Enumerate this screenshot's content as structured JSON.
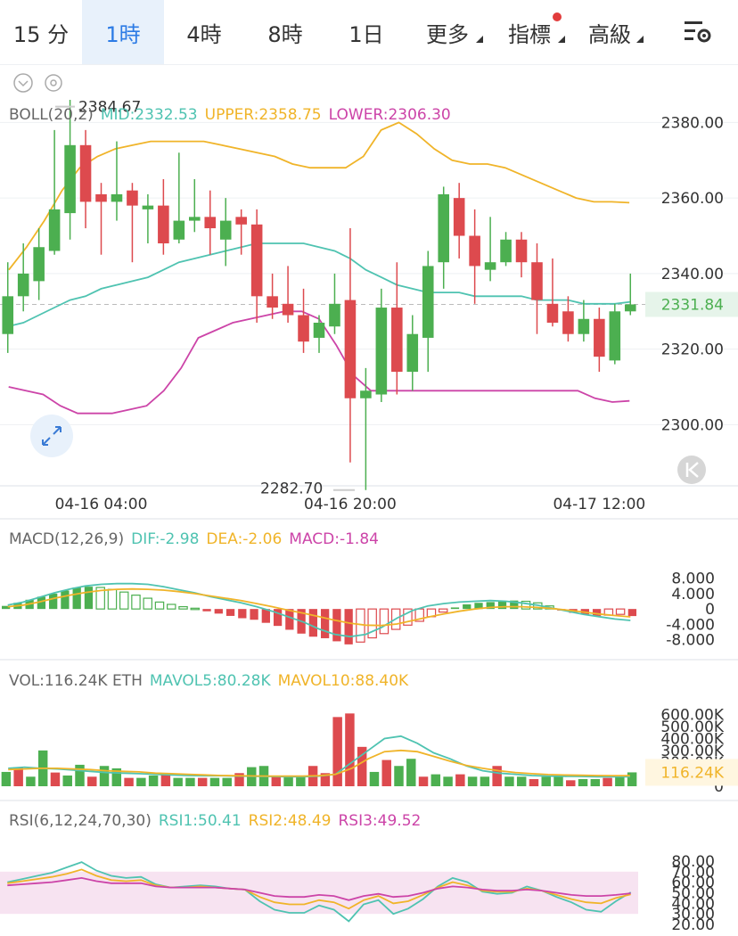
{
  "tabs": [
    {
      "label": "15 分",
      "active": false
    },
    {
      "label": "1時",
      "active": true
    },
    {
      "label": "4時",
      "active": false
    },
    {
      "label": "8時",
      "active": false
    },
    {
      "label": "1日",
      "active": false
    },
    {
      "label": "更多",
      "active": false,
      "dropdown": true
    },
    {
      "label": "指標",
      "active": false,
      "dropdown": true,
      "dot": true
    },
    {
      "label": "高級",
      "active": false,
      "dropdown": true
    }
  ],
  "colors": {
    "up": "#4caf50",
    "down": "#dd4a4e",
    "mid": "#4fc3b1",
    "upper": "#f0b429",
    "lower": "#cc44a8",
    "macd": "#cc44a8",
    "rsiBand": "#f7e3f1",
    "text": "#555555",
    "axis": "#333333",
    "grid": "#eef0f3",
    "active": "#2c7be5"
  },
  "icons": {
    "settings": "chart-settings-icon",
    "collapse": "chevron-down-circle-icon",
    "gear": "gear-icon",
    "expand": "expand-arrows-icon",
    "back": "skip-back-icon"
  },
  "chart_data": [
    {
      "type": "candlestick",
      "indicator": {
        "name": "BOLL(20,2)",
        "mid": "MID:2332.53",
        "upper": "UPPER:2358.75",
        "lower": "LOWER:2306.30"
      },
      "ylim": [
        2285,
        2390
      ],
      "yticks": [
        "2380.00",
        "2360.00",
        "2340.00",
        "2320.00",
        "2300.00"
      ],
      "ytick_values": [
        2380,
        2360,
        2340,
        2320,
        2300
      ],
      "last_price": "2331.84",
      "last_price_value": 2331.84,
      "high_label": "2384.67",
      "high_value": 2384.67,
      "low_label": "2282.70",
      "low_value": 2282.7,
      "xticks": [
        "04-16 04:00",
        "04-16 20:00",
        "04-17 12:00"
      ],
      "xtick_index": [
        6,
        22,
        38
      ],
      "candles": [
        {
          "o": 2324,
          "h": 2343,
          "l": 2319,
          "c": 2334
        },
        {
          "o": 2334,
          "h": 2348,
          "l": 2330,
          "c": 2340
        },
        {
          "o": 2338,
          "h": 2352,
          "l": 2333,
          "c": 2347
        },
        {
          "o": 2346,
          "h": 2378,
          "l": 2345,
          "c": 2357
        },
        {
          "o": 2356,
          "h": 2386,
          "l": 2349,
          "c": 2374
        },
        {
          "o": 2374,
          "h": 2378,
          "l": 2352,
          "c": 2359
        },
        {
          "o": 2361,
          "h": 2364,
          "l": 2345,
          "c": 2359
        },
        {
          "o": 2359,
          "h": 2375,
          "l": 2354,
          "c": 2361
        },
        {
          "o": 2362,
          "h": 2364,
          "l": 2343,
          "c": 2358
        },
        {
          "o": 2357,
          "h": 2361,
          "l": 2348,
          "c": 2358
        },
        {
          "o": 2358,
          "h": 2365,
          "l": 2345,
          "c": 2348
        },
        {
          "o": 2349,
          "h": 2372,
          "l": 2348,
          "c": 2354
        },
        {
          "o": 2354,
          "h": 2365,
          "l": 2351,
          "c": 2355
        },
        {
          "o": 2355,
          "h": 2362,
          "l": 2345,
          "c": 2352
        },
        {
          "o": 2349,
          "h": 2360,
          "l": 2342,
          "c": 2354
        },
        {
          "o": 2355,
          "h": 2357,
          "l": 2345,
          "c": 2353
        },
        {
          "o": 2353,
          "h": 2357,
          "l": 2327,
          "c": 2334
        },
        {
          "o": 2334,
          "h": 2340,
          "l": 2328,
          "c": 2331
        },
        {
          "o": 2332,
          "h": 2342,
          "l": 2327,
          "c": 2329
        },
        {
          "o": 2329,
          "h": 2336,
          "l": 2319,
          "c": 2322
        },
        {
          "o": 2323,
          "h": 2329,
          "l": 2319,
          "c": 2327
        },
        {
          "o": 2326,
          "h": 2340,
          "l": 2324,
          "c": 2332
        },
        {
          "o": 2333,
          "h": 2352,
          "l": 2290,
          "c": 2307
        },
        {
          "o": 2307,
          "h": 2315,
          "l": 2282.7,
          "c": 2309
        },
        {
          "o": 2308,
          "h": 2336,
          "l": 2306,
          "c": 2331
        },
        {
          "o": 2331,
          "h": 2343,
          "l": 2308,
          "c": 2314
        },
        {
          "o": 2314,
          "h": 2329,
          "l": 2309,
          "c": 2324
        },
        {
          "o": 2323,
          "h": 2346,
          "l": 2314,
          "c": 2342
        },
        {
          "o": 2343,
          "h": 2363,
          "l": 2336,
          "c": 2361
        },
        {
          "o": 2360,
          "h": 2364,
          "l": 2344,
          "c": 2350
        },
        {
          "o": 2350,
          "h": 2357,
          "l": 2332,
          "c": 2342
        },
        {
          "o": 2341,
          "h": 2355,
          "l": 2338,
          "c": 2343
        },
        {
          "o": 2343,
          "h": 2351,
          "l": 2342,
          "c": 2349
        },
        {
          "o": 2349,
          "h": 2351,
          "l": 2339,
          "c": 2343
        },
        {
          "o": 2343,
          "h": 2348,
          "l": 2324,
          "c": 2333
        },
        {
          "o": 2332,
          "h": 2344,
          "l": 2326,
          "c": 2327
        },
        {
          "o": 2330,
          "h": 2334,
          "l": 2322,
          "c": 2324
        },
        {
          "o": 2324,
          "h": 2333,
          "l": 2322,
          "c": 2328
        },
        {
          "o": 2328,
          "h": 2331,
          "l": 2314,
          "c": 2318
        },
        {
          "o": 2317,
          "h": 2332,
          "l": 2316,
          "c": 2330
        },
        {
          "o": 2330,
          "h": 2340,
          "l": 2329,
          "c": 2331.84
        }
      ],
      "boll_mid": [
        2326,
        2327,
        2329,
        2331,
        2333,
        2334,
        2336,
        2337,
        2338,
        2339,
        2341,
        2343,
        2344,
        2345,
        2346,
        2347,
        2348,
        2348,
        2348,
        2348,
        2347,
        2346,
        2344,
        2341,
        2339,
        2337,
        2336,
        2335,
        2335,
        2335,
        2334,
        2334,
        2334,
        2334,
        2333,
        2333,
        2333,
        2332,
        2332,
        2332,
        2332.53
      ],
      "boll_upper": [
        2341,
        2347,
        2354,
        2362,
        2368,
        2371,
        2373,
        2374,
        2375,
        2375,
        2375,
        2375,
        2374,
        2373,
        2372,
        2371,
        2369,
        2368,
        2368,
        2368,
        2371,
        2378,
        2380,
        2377,
        2373,
        2370,
        2369,
        2369,
        2368,
        2366,
        2364,
        2362,
        2360,
        2359,
        2359,
        2358.75
      ],
      "boll_lower": [
        2310,
        2309,
        2308,
        2305,
        2303,
        2303,
        2303,
        2304,
        2305,
        2309,
        2315,
        2323,
        2325,
        2327,
        2328,
        2329,
        2330,
        2330,
        2328,
        2321,
        2313,
        2309,
        2309,
        2309,
        2309,
        2309,
        2309,
        2309,
        2309,
        2309,
        2309,
        2309,
        2309,
        2309,
        2307,
        2306,
        2306.3
      ]
    },
    {
      "type": "bar",
      "indicator": {
        "name": "MACD(12,26,9)",
        "dif": "DIF:-2.98",
        "dea": "DEA:-2.06",
        "macd": "MACD:-1.84"
      },
      "ylim": [
        -9,
        10
      ],
      "yticks": [
        "8.000",
        "4.000",
        "0",
        "-4.000",
        "-8.000"
      ],
      "ytick_values": [
        8,
        4,
        0,
        -4,
        -8
      ],
      "macd": [
        0.8,
        1.6,
        2.4,
        3.2,
        4.0,
        4.8,
        5.6,
        5.8,
        5.6,
        5.1,
        4.4,
        3.6,
        2.8,
        1.8,
        1.2,
        0.6,
        0.2,
        -0.6,
        -1.2,
        -1.8,
        -2.4,
        -2.8,
        -3.6,
        -4.4,
        -5.4,
        -6.4,
        -7.2,
        -7.6,
        -8.4,
        -9.2,
        -8.6,
        -7.5,
        -6.4,
        -5.3,
        -4.2,
        -3.2,
        -2.0,
        -0.8,
        0.4,
        1.2,
        1.6,
        1.8,
        2.0,
        2.2,
        2.0,
        1.6,
        0.8,
        -0.4,
        -1.0,
        -1.4,
        -1.8,
        -1.6,
        -1.4,
        -1.84
      ],
      "dif": [
        1.0,
        1.8,
        3.0,
        4.2,
        5.2,
        6.0,
        6.4,
        6.6,
        6.6,
        6.4,
        5.8,
        5.0,
        4.2,
        3.2,
        2.4,
        1.6,
        0.6,
        -0.6,
        -2.0,
        -3.4,
        -5.2,
        -6.6,
        -7.2,
        -6.6,
        -4.8,
        -2.4,
        -0.4,
        0.8,
        1.4,
        1.8,
        2.0,
        2.2,
        2.0,
        1.6,
        1.0,
        0.2,
        -0.6,
        -1.4,
        -2.0,
        -2.6,
        -2.98
      ],
      "dea": [
        0.6,
        1.0,
        1.8,
        2.8,
        3.6,
        4.3,
        4.8,
        5.1,
        5.2,
        5.1,
        4.9,
        4.5,
        4.0,
        3.4,
        2.8,
        2.2,
        1.4,
        0.6,
        -0.3,
        -1.1,
        -2.0,
        -2.9,
        -3.7,
        -4.2,
        -4.3,
        -3.9,
        -3.0,
        -2.1,
        -1.3,
        -0.6,
        0.0,
        0.4,
        0.6,
        0.6,
        0.4,
        0.1,
        -0.3,
        -0.8,
        -1.3,
        -1.7,
        -2.06
      ]
    },
    {
      "type": "bar",
      "indicator": {
        "name": "VOL:116.24K ETH",
        "mavol5": "MAVOL5:80.28K",
        "mavol10": "MAVOL10:88.40K"
      },
      "ylim": [
        0,
        650
      ],
      "yticks": [
        "600.00K",
        "500.00K",
        "400.00K",
        "300.00K",
        "200.00K",
        "0"
      ],
      "ytick_values": [
        600,
        500,
        400,
        300,
        200,
        0
      ],
      "last_value_label": "116.24K",
      "last_value": 116.24,
      "volume": [
        120,
        160,
        80,
        300,
        115,
        90,
        180,
        80,
        170,
        150,
        70,
        70,
        90,
        110,
        70,
        70,
        70,
        70,
        70,
        110,
        160,
        170,
        80,
        90,
        90,
        170,
        110,
        580,
        610,
        330,
        120,
        220,
        170,
        230,
        80,
        100,
        80,
        100,
        80,
        80,
        170,
        80,
        80,
        60,
        80,
        80,
        50,
        60,
        60,
        70,
        80,
        116.24
      ],
      "mavol5": [
        150,
        160,
        150,
        145,
        135,
        125,
        115,
        110,
        105,
        100,
        95,
        90,
        88,
        88,
        85,
        83,
        82,
        80,
        80,
        85,
        100,
        200,
        300,
        400,
        420,
        360,
        280,
        230,
        170,
        130,
        110,
        100,
        90,
        85,
        83,
        82,
        80,
        80,
        80.28
      ],
      "mavol10": [
        140,
        145,
        150,
        150,
        145,
        140,
        130,
        125,
        120,
        110,
        105,
        100,
        95,
        90,
        88,
        86,
        85,
        85,
        85,
        88,
        100,
        150,
        230,
        290,
        300,
        290,
        250,
        210,
        175,
        150,
        130,
        115,
        105,
        98,
        94,
        92,
        90,
        89,
        88.4
      ]
    },
    {
      "type": "line",
      "indicator": {
        "name": "RSI(6,12,24,70,30)",
        "rsi1": "RSI1:50.41",
        "rsi2": "RSI2:48.49",
        "rsi3": "RSI3:49.52"
      },
      "ylim": [
        15,
        85
      ],
      "yticks": [
        "80.00",
        "70.00",
        "60.00",
        "50.00",
        "40.00",
        "30.00",
        "20.00"
      ],
      "ytick_values": [
        80,
        70,
        60,
        50,
        40,
        30,
        20
      ],
      "band": [
        30,
        70
      ],
      "rsi1": [
        60,
        63,
        66,
        69,
        74,
        79,
        71,
        66,
        64,
        65,
        58,
        55,
        56,
        57,
        56,
        54,
        53,
        42,
        34,
        31,
        31,
        38,
        34,
        23,
        39,
        43,
        30,
        35,
        44,
        56,
        64,
        60,
        51,
        49,
        50,
        56,
        52,
        46,
        41,
        34,
        32,
        42,
        50.41
      ],
      "rsi2": [
        59,
        61,
        63,
        65,
        68,
        72,
        66,
        62,
        61,
        62,
        57,
        55,
        55,
        56,
        55,
        54,
        53,
        46,
        41,
        39,
        39,
        43,
        41,
        35,
        43,
        47,
        40,
        42,
        48,
        55,
        60,
        57,
        52,
        51,
        51,
        54,
        52,
        48,
        44,
        41,
        40,
        45,
        48.49
      ],
      "rsi3": [
        57,
        58,
        59,
        60,
        62,
        64,
        61,
        59,
        59,
        59,
        56,
        55,
        55,
        55,
        55,
        54,
        53,
        50,
        47,
        46,
        46,
        48,
        47,
        43,
        47,
        49,
        46,
        47,
        50,
        54,
        56,
        55,
        53,
        52,
        52,
        53,
        52,
        50,
        48,
        47,
        47,
        48,
        49.52
      ]
    }
  ]
}
